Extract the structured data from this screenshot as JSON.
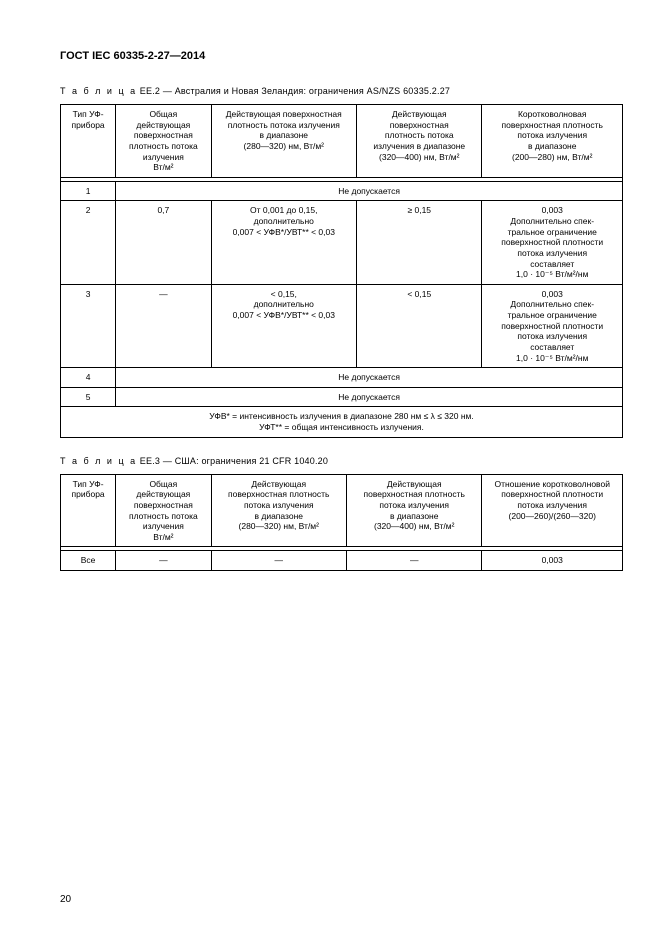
{
  "doc_id": "ГОСТ IEC 60335-2-27—2014",
  "tableEE2": {
    "caption_prefix": "Т а б л и ц а",
    "caption_rest": "  ЕЕ.2 — Австралия и Новая Зеландия: ограничения AS/NZS 60335.2.27",
    "col_widths": [
      "55px",
      "95px",
      "145px",
      "125px",
      "140px"
    ],
    "headers": [
      "Тип УФ-\nприбора",
      "Общая\nдействующая\nповерхностная\nплотность потока\nизлучения\nВт/м²",
      "Действующая поверхностная\nплотность потока излучения\nв диапазоне\n(280—320) нм, Вт/м²",
      "Действующая\nповерхностная\nплотность потока\nизлучения в диапазоне\n(320—400) нм, Вт/м²",
      "Коротковолновая\nповерхностная плотность\nпотока излучения\nв диапазоне\n(200—280) нм, Вт/м²"
    ],
    "row1_label": "1",
    "row1_merged": "Не допускается",
    "row2": [
      "2",
      "0,7",
      "От 0,001 до 0,15,\nдополнительно\n0,007 < УФВ*/УВТ** < 0,03",
      "≥ 0,15",
      "0,003\nДополнительно спек-\nтральное ограничение\nповерхностной плотности\nпотока излучения\nсоставляет\n1,0 · 10⁻⁵ Вт/м²/нм"
    ],
    "row3": [
      "3",
      "—",
      "< 0,15,\nдополнительно\n0,007 < УФВ*/УВТ** < 0,03",
      "< 0,15",
      "0,003\nДополнительно спек-\nтральное ограничение\nповерхностной плотности\nпотока излучения\nсоставляет\n1,0 · 10⁻⁵ Вт/м²/нм"
    ],
    "row4_label": "4",
    "row4_merged": "Не допускается",
    "row5_label": "5",
    "row5_merged": "Не допускается",
    "footnote": "УФВ* = интенсивность излучения в диапазоне 280 нм ≤ λ ≤ 320 нм.\nУФТ** = общая интенсивность излучения."
  },
  "tableEE3": {
    "caption_prefix": "Т а б л и ц а",
    "caption_rest": "  ЕЕ.3 — США: ограничения 21 CFR 1040.20",
    "col_widths": [
      "55px",
      "95px",
      "135px",
      "135px",
      "140px"
    ],
    "headers": [
      "Тип УФ-\nприбора",
      "Общая\nдействующая\nповерхностная\nплотность потока\nизлучения\nВт/м²",
      "Действующая\nповерхностная плотность\nпотока излучения\nв диапазоне\n(280—320) нм, Вт/м²",
      "Действующая\nповерхностная плотность\nпотока излучения\nв диапазоне\n(320—400) нм, Вт/м²",
      "Отношение коротковолновой\nповерхностной плотности\nпотока излучения\n(200—260)/(260—320)"
    ],
    "row": [
      "Все",
      "—",
      "—",
      "—",
      "0,003"
    ]
  },
  "page_number": "20"
}
